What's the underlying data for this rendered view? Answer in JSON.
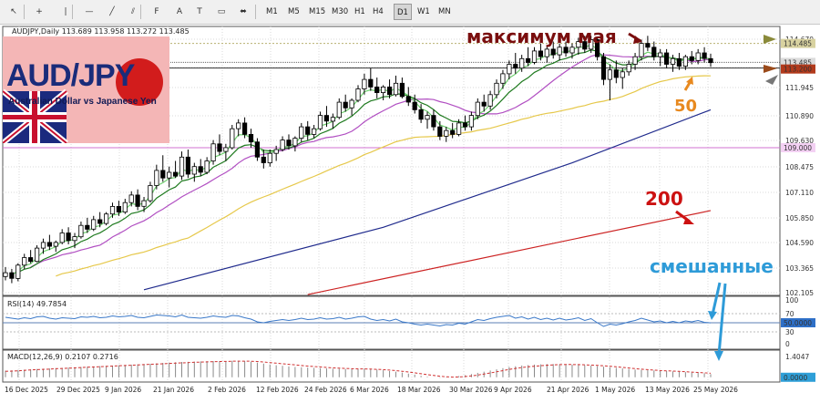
{
  "toolbar": {
    "tools": [
      "cursor-icon",
      "crosshair-icon",
      "vertical-line-icon",
      "horizontal-line-icon",
      "trendline-icon",
      "channel-icon",
      "fibonacci-icon",
      "text-icon",
      "label-icon",
      "shapes-icon",
      "arrows-icon"
    ],
    "timeframes": [
      "M1",
      "M5",
      "M15",
      "M30",
      "H1",
      "H4",
      "D1",
      "W1",
      "MN"
    ],
    "active_timeframe": "D1"
  },
  "chart_data": {
    "type": "candlestick",
    "symbol_header": "AUDJPY,Daily",
    "ohlc_header": "113.689 113.958 113.272 113.485",
    "logo": {
      "title": "AUD/JPY",
      "subtitle": "Australian Dollar vs Japanese Yen"
    },
    "annotations": {
      "may_high": "максимум мая",
      "ma50": "50",
      "ma200": "200",
      "mixed": "смешанные"
    },
    "ylim": [
      101.3,
      115.3
    ],
    "y_ticks": [
      "114.670",
      "113.200",
      "111.945",
      "110.890",
      "109.630",
      "108.475",
      "107.110",
      "105.850",
      "104.590",
      "103.365",
      "102.105"
    ],
    "price_labels": {
      "resistance": "114.485",
      "current": "113.485",
      "support": "113.200",
      "level_109": "109.000"
    },
    "support_level": 113.2,
    "resistance_level": 114.5,
    "level_109": 109.0,
    "x_labels": [
      "16 Dec 2025",
      "29 Dec 2025",
      "9 Jan 2026",
      "21 Jan 2026",
      "2 Feb 2026",
      "12 Feb 2026",
      "24 Feb 2026",
      "6 Mar 2026",
      "18 Mar 2026",
      "30 Mar 2026",
      "9 Apr 2026",
      "21 Apr 2026",
      "1 May 2026",
      "13 May 2026",
      "25 May 2026"
    ],
    "candles": [
      [
        102.2,
        102.7,
        102.0,
        102.4
      ],
      [
        102.4,
        102.6,
        101.85,
        102.1
      ],
      [
        102.1,
        102.9,
        101.95,
        102.8
      ],
      [
        102.8,
        103.4,
        102.6,
        103.2
      ],
      [
        103.2,
        103.6,
        102.9,
        103.0
      ],
      [
        103.0,
        103.85,
        102.95,
        103.7
      ],
      [
        103.7,
        104.2,
        103.4,
        104.0
      ],
      [
        104.0,
        104.4,
        103.6,
        103.8
      ],
      [
        103.8,
        104.1,
        103.5,
        104.0
      ],
      [
        104.0,
        104.7,
        103.9,
        104.5
      ],
      [
        104.5,
        104.8,
        103.9,
        104.1
      ],
      [
        104.1,
        104.5,
        103.7,
        104.3
      ],
      [
        104.3,
        105.1,
        104.2,
        104.9
      ],
      [
        104.9,
        105.3,
        104.5,
        104.7
      ],
      [
        104.7,
        105.4,
        104.6,
        105.2
      ],
      [
        105.2,
        105.6,
        104.8,
        105.0
      ],
      [
        105.0,
        105.6,
        104.9,
        105.5
      ],
      [
        105.5,
        106.1,
        105.3,
        105.9
      ],
      [
        105.9,
        106.2,
        105.4,
        105.6
      ],
      [
        105.6,
        106.3,
        105.5,
        106.1
      ],
      [
        106.1,
        106.7,
        105.9,
        106.5
      ],
      [
        106.5,
        106.8,
        105.7,
        105.9
      ],
      [
        105.9,
        106.4,
        105.6,
        106.2
      ],
      [
        106.2,
        107.2,
        106.1,
        107.0
      ],
      [
        107.0,
        108.1,
        106.8,
        107.8
      ],
      [
        107.8,
        108.6,
        107.2,
        107.4
      ],
      [
        107.4,
        108.0,
        106.9,
        107.7
      ],
      [
        107.7,
        108.3,
        107.4,
        107.5
      ],
      [
        107.5,
        108.8,
        107.3,
        108.5
      ],
      [
        108.5,
        108.9,
        107.4,
        107.6
      ],
      [
        107.6,
        108.2,
        107.2,
        108.0
      ],
      [
        108.0,
        108.4,
        107.5,
        107.7
      ],
      [
        107.7,
        108.5,
        107.6,
        108.3
      ],
      [
        108.3,
        109.4,
        108.1,
        109.2
      ],
      [
        109.2,
        109.7,
        108.6,
        108.8
      ],
      [
        108.8,
        109.2,
        108.3,
        109.0
      ],
      [
        109.0,
        110.2,
        108.9,
        110.0
      ],
      [
        110.0,
        110.5,
        109.6,
        110.3
      ],
      [
        110.3,
        110.6,
        109.5,
        109.7
      ],
      [
        109.7,
        110.0,
        109.0,
        109.3
      ],
      [
        109.3,
        109.5,
        108.3,
        108.5
      ],
      [
        108.5,
        108.9,
        107.9,
        108.2
      ],
      [
        108.2,
        108.9,
        108.0,
        108.7
      ],
      [
        108.7,
        109.1,
        108.3,
        108.9
      ],
      [
        108.9,
        109.6,
        108.8,
        109.4
      ],
      [
        109.4,
        109.7,
        108.9,
        109.1
      ],
      [
        109.1,
        109.6,
        108.8,
        109.5
      ],
      [
        109.5,
        110.3,
        109.3,
        110.1
      ],
      [
        110.1,
        110.4,
        109.4,
        109.7
      ],
      [
        109.7,
        110.2,
        109.5,
        110.0
      ],
      [
        110.0,
        110.9,
        109.9,
        110.7
      ],
      [
        110.7,
        111.2,
        110.1,
        110.4
      ],
      [
        110.4,
        110.8,
        110.0,
        110.6
      ],
      [
        110.6,
        111.6,
        110.5,
        111.4
      ],
      [
        111.4,
        111.8,
        110.9,
        111.1
      ],
      [
        111.1,
        111.6,
        110.7,
        111.5
      ],
      [
        111.5,
        112.3,
        111.4,
        112.1
      ],
      [
        112.1,
        112.9,
        111.8,
        112.6
      ],
      [
        112.6,
        113.2,
        112.0,
        112.2
      ],
      [
        112.2,
        112.7,
        111.6,
        111.9
      ],
      [
        111.9,
        112.3,
        111.5,
        112.2
      ],
      [
        112.2,
        112.6,
        111.6,
        111.8
      ],
      [
        111.8,
        112.8,
        111.7,
        112.4
      ],
      [
        112.4,
        112.7,
        111.6,
        111.7
      ],
      [
        111.7,
        112.2,
        111.2,
        111.4
      ],
      [
        111.4,
        111.8,
        110.8,
        111.0
      ],
      [
        111.0,
        111.3,
        110.3,
        110.5
      ],
      [
        110.5,
        110.9,
        110.0,
        110.7
      ],
      [
        110.7,
        111.0,
        109.9,
        110.1
      ],
      [
        110.1,
        110.4,
        109.4,
        109.6
      ],
      [
        109.6,
        110.1,
        109.3,
        109.9
      ],
      [
        109.9,
        110.3,
        109.5,
        109.7
      ],
      [
        109.7,
        110.5,
        109.6,
        110.3
      ],
      [
        110.3,
        110.7,
        109.9,
        110.1
      ],
      [
        110.1,
        110.9,
        109.9,
        110.7
      ],
      [
        110.7,
        111.6,
        110.5,
        111.4
      ],
      [
        111.4,
        111.8,
        110.9,
        111.2
      ],
      [
        111.2,
        112.0,
        111.0,
        111.8
      ],
      [
        111.8,
        112.6,
        111.6,
        112.4
      ],
      [
        112.4,
        113.1,
        112.1,
        112.9
      ],
      [
        112.9,
        113.6,
        112.6,
        113.4
      ],
      [
        113.4,
        114.0,
        112.9,
        113.2
      ],
      [
        113.2,
        113.9,
        113.0,
        113.7
      ],
      [
        113.7,
        114.3,
        113.3,
        113.5
      ],
      [
        113.5,
        114.3,
        113.4,
        114.1
      ],
      [
        114.1,
        114.5,
        113.6,
        113.8
      ],
      [
        113.8,
        114.4,
        113.5,
        114.2
      ],
      [
        114.2,
        114.6,
        113.7,
        113.9
      ],
      [
        113.9,
        114.5,
        113.6,
        114.3
      ],
      [
        114.3,
        114.6,
        113.8,
        114.0
      ],
      [
        114.0,
        114.5,
        113.7,
        114.3
      ],
      [
        114.3,
        114.8,
        113.9,
        114.6
      ],
      [
        114.6,
        114.9,
        114.0,
        114.2
      ],
      [
        114.2,
        114.9,
        114.0,
        114.7
      ],
      [
        114.7,
        114.8,
        113.6,
        113.8
      ],
      [
        113.8,
        114.0,
        112.3,
        112.6
      ],
      [
        112.6,
        113.4,
        111.5,
        113.1
      ],
      [
        113.1,
        113.6,
        112.4,
        112.7
      ],
      [
        112.7,
        113.2,
        112.1,
        113.0
      ],
      [
        113.0,
        113.6,
        112.8,
        113.4
      ],
      [
        113.4,
        114.0,
        113.1,
        113.8
      ],
      [
        113.8,
        114.7,
        113.6,
        114.5
      ],
      [
        114.5,
        114.9,
        114.1,
        114.3
      ],
      [
        114.3,
        114.6,
        113.6,
        113.8
      ],
      [
        113.8,
        114.2,
        113.3,
        114.0
      ],
      [
        114.0,
        114.2,
        113.2,
        113.4
      ],
      [
        113.4,
        113.9,
        113.0,
        113.7
      ],
      [
        113.7,
        114.0,
        113.1,
        113.3
      ],
      [
        113.3,
        113.9,
        113.1,
        113.8
      ],
      [
        113.8,
        114.1,
        113.4,
        113.6
      ],
      [
        113.6,
        114.2,
        113.4,
        114.0
      ],
      [
        114.0,
        114.3,
        113.5,
        113.7
      ],
      [
        113.7,
        113.96,
        113.27,
        113.49
      ]
    ],
    "ma_series": [
      {
        "period": 200,
        "color": "#cc2222",
        "values": [
          105.45,
          105.55,
          105.68
        ]
      },
      {
        "period": 100,
        "color": "#1f2a8c"
      },
      {
        "period": 50,
        "color": "#e6c84a"
      },
      {
        "period": 21,
        "color": "#b14fc2"
      },
      {
        "period": 10,
        "color": "#1e7a1e"
      },
      {
        "period": 5,
        "color": "#6fd06f"
      }
    ],
    "rsi": {
      "label": "RSI(14) 49.7854",
      "ticks": [
        "100",
        "70",
        "50",
        "30",
        "0"
      ],
      "current_label": "50.0000",
      "values": [
        62,
        60,
        58,
        61,
        59,
        63,
        64,
        60,
        58,
        61,
        60,
        59,
        63,
        62,
        64,
        61,
        62,
        65,
        63,
        64,
        66,
        62,
        61,
        64,
        67,
        66,
        65,
        63,
        67,
        62,
        61,
        60,
        62,
        65,
        63,
        62,
        66,
        65,
        61,
        58,
        52,
        50,
        53,
        55,
        57,
        55,
        57,
        60,
        57,
        58,
        61,
        58,
        59,
        62,
        58,
        60,
        63,
        64,
        58,
        55,
        57,
        54,
        58,
        52,
        50,
        47,
        45,
        47,
        45,
        43,
        46,
        45,
        49,
        47,
        52,
        57,
        55,
        59,
        62,
        64,
        66,
        60,
        63,
        58,
        62,
        57,
        60,
        56,
        60,
        56,
        58,
        61,
        55,
        59,
        50,
        42,
        47,
        45,
        48,
        52,
        55,
        60,
        56,
        52,
        54,
        50,
        53,
        50,
        54,
        52,
        55,
        51,
        49.8
      ]
    },
    "macd": {
      "label": "MACD(12,26,9) 0.2107 0.2716",
      "top_tick": "1.4047",
      "current_label": "0.0000",
      "ylim": [
        -0.2,
        1.6
      ],
      "histogram": [
        0.45,
        0.47,
        0.5,
        0.52,
        0.54,
        0.56,
        0.58,
        0.6,
        0.62,
        0.64,
        0.66,
        0.68,
        0.7,
        0.72,
        0.74,
        0.76,
        0.78,
        0.8,
        0.82,
        0.84,
        0.86,
        0.88,
        0.9,
        0.92,
        0.95,
        0.98,
        1.0,
        1.02,
        1.04,
        1.05,
        1.06,
        1.08,
        1.09,
        1.1,
        1.1,
        1.1,
        1.12,
        1.12,
        1.1,
        1.06,
        1.0,
        0.93,
        0.87,
        0.82,
        0.78,
        0.74,
        0.7,
        0.68,
        0.66,
        0.64,
        0.62,
        0.6,
        0.58,
        0.58,
        0.56,
        0.55,
        0.56,
        0.58,
        0.56,
        0.52,
        0.48,
        0.42,
        0.38,
        0.32,
        0.25,
        0.18,
        0.1,
        0.04,
        0.0,
        -0.03,
        -0.02,
        0.02,
        0.08,
        0.14,
        0.22,
        0.3,
        0.38,
        0.46,
        0.54,
        0.62,
        0.7,
        0.75,
        0.8,
        0.83,
        0.86,
        0.88,
        0.9,
        0.9,
        0.89,
        0.88,
        0.86,
        0.84,
        0.82,
        0.8,
        0.76,
        0.72,
        0.68,
        0.64,
        0.6,
        0.56,
        0.52,
        0.5,
        0.48,
        0.46,
        0.44,
        0.42,
        0.4,
        0.38,
        0.35,
        0.32,
        0.3,
        0.27,
        0.21
      ],
      "signal": [
        0.4,
        0.42,
        0.44,
        0.47,
        0.5,
        0.52,
        0.54,
        0.56,
        0.58,
        0.6,
        0.62,
        0.64,
        0.66,
        0.68,
        0.7,
        0.72,
        0.74,
        0.76,
        0.78,
        0.8,
        0.82,
        0.84,
        0.86,
        0.88,
        0.9,
        0.92,
        0.94,
        0.96,
        0.98,
        1.0,
        1.02,
        1.03,
        1.05,
        1.06,
        1.07,
        1.08,
        1.09,
        1.1,
        1.1,
        1.09,
        1.07,
        1.04,
        1.0,
        0.96,
        0.92,
        0.88,
        0.84,
        0.8,
        0.76,
        0.73,
        0.7,
        0.67,
        0.64,
        0.62,
        0.6,
        0.58,
        0.57,
        0.57,
        0.56,
        0.54,
        0.52,
        0.49,
        0.45,
        0.41,
        0.36,
        0.3,
        0.24,
        0.18,
        0.12,
        0.07,
        0.03,
        0.01,
        0.02,
        0.05,
        0.09,
        0.15,
        0.22,
        0.29,
        0.37,
        0.45,
        0.53,
        0.6,
        0.66,
        0.71,
        0.75,
        0.79,
        0.82,
        0.84,
        0.86,
        0.87,
        0.87,
        0.86,
        0.85,
        0.83,
        0.81,
        0.78,
        0.75,
        0.71,
        0.67,
        0.63,
        0.59,
        0.55,
        0.52,
        0.49,
        0.46,
        0.44,
        0.42,
        0.4,
        0.38,
        0.35,
        0.33,
        0.3,
        0.27
      ]
    }
  }
}
